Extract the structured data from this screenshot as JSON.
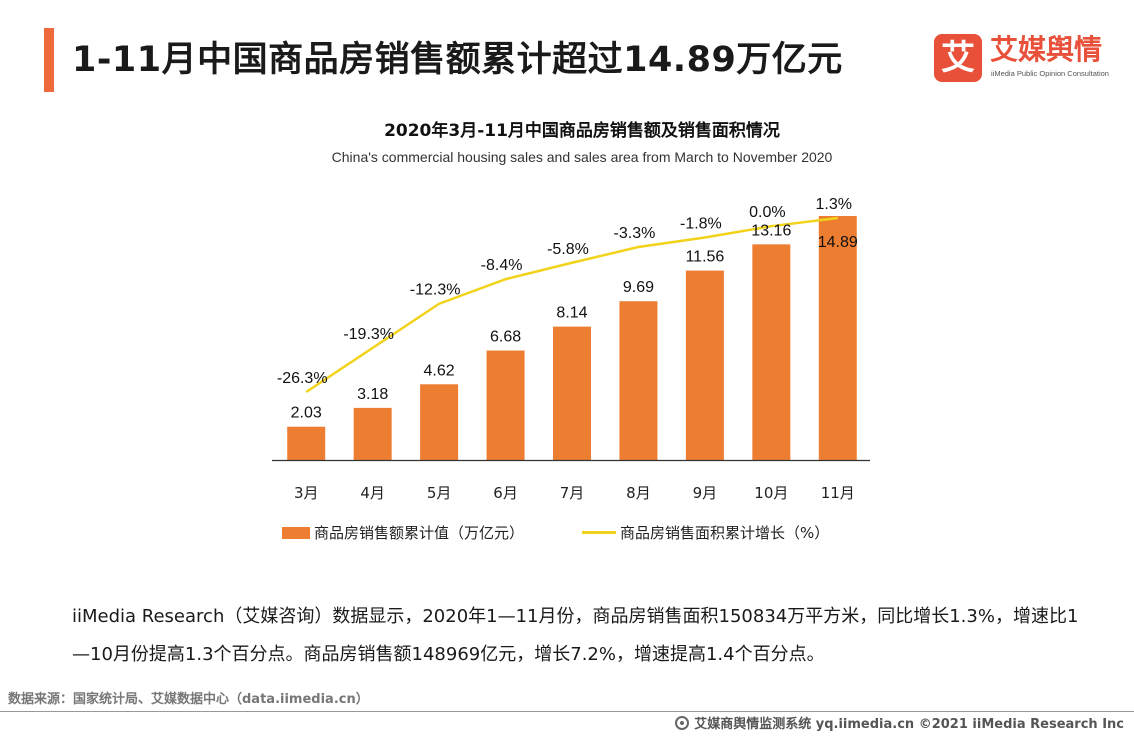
{
  "page": {
    "title": "1-11月中国商品房销售额累计超过14.89万亿元",
    "accent_color": "#ee6a3d"
  },
  "logo": {
    "mark": "艾",
    "name": "艾媒舆情",
    "subtitle": "iiMedia Public Opinion Consultation",
    "color": "#e8503a"
  },
  "chart_data": {
    "type": "bar",
    "title": "2020年3月-11月中国商品房销售额及销售面积情况",
    "subtitle": "China's commercial housing sales and sales area from March to November 2020",
    "categories": [
      "3月",
      "4月",
      "5月",
      "6月",
      "7月",
      "8月",
      "9月",
      "10月",
      "11月"
    ],
    "series": [
      {
        "name": "商品房销售额累计值（万亿元）",
        "type": "bar",
        "color": "#ed7d31",
        "values": [
          2.03,
          3.18,
          4.62,
          6.68,
          8.14,
          9.69,
          11.56,
          13.16,
          14.89
        ],
        "labels": [
          "2.03",
          "3.18",
          "4.62",
          "6.68",
          "8.14",
          "9.69",
          "11.56",
          "13.16",
          "14.89"
        ]
      },
      {
        "name": "商品房销售面积累计增长（%）",
        "type": "line",
        "color": "#f2d31b",
        "values": [
          -26.3,
          -19.3,
          -12.3,
          -8.4,
          -5.8,
          -3.3,
          -1.8,
          0.0,
          1.3
        ],
        "labels": [
          "-26.3%",
          "-19.3%",
          "-12.3%",
          "-8.4%",
          "-5.8%",
          "-3.3%",
          "-1.8%",
          "0.0%",
          "1.3%"
        ]
      }
    ],
    "ylim_bar": [
      0,
      16
    ],
    "ylim_line": [
      -35,
      1.3
    ],
    "grid": false,
    "legend": "bottom"
  },
  "text": {
    "body": "iiMedia Research（艾媒咨询）数据显示，2020年1—11月份，商品房销售面积150834万平方米，同比增长1.3%，增速比1—10月份提高1.3个百分点。商品房销售额148969亿元，增长7.2%，增速提高1.4个百分点。",
    "source": "数据来源：国家统计局、艾媒数据中心（data.iimedia.cn）",
    "footer": "艾媒商舆情监测系统 yq.iimedia.cn ©2021 iiMedia Research Inc"
  }
}
